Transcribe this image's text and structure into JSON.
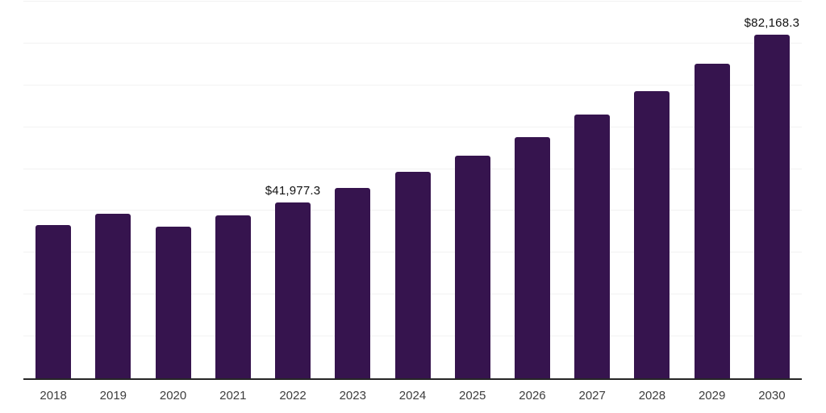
{
  "chart_data": {
    "type": "bar",
    "title": "",
    "xlabel": "",
    "ylabel": "",
    "categories": [
      "2018",
      "2019",
      "2020",
      "2021",
      "2022",
      "2023",
      "2024",
      "2025",
      "2026",
      "2027",
      "2028",
      "2029",
      "2030"
    ],
    "values": [
      36700,
      39400,
      36300,
      39000,
      41977.3,
      45400,
      49300,
      53200,
      57700,
      63000,
      68700,
      75200,
      82168.3
    ],
    "value_labels": [
      "",
      "",
      "",
      "",
      "$41,977.3",
      "",
      "",
      "",
      "",
      "",
      "",
      "",
      "$82,168.3"
    ],
    "ylim": [
      0,
      90000
    ],
    "grid_step": 10000,
    "grid": true,
    "legend": "none",
    "colors": {
      "bar": "#36144E",
      "gridline": "#F2F2F2",
      "axis_line": "#262626",
      "tick_label": "#3D3D3D",
      "value_label": "#111111",
      "background": "#FFFFFF"
    }
  }
}
